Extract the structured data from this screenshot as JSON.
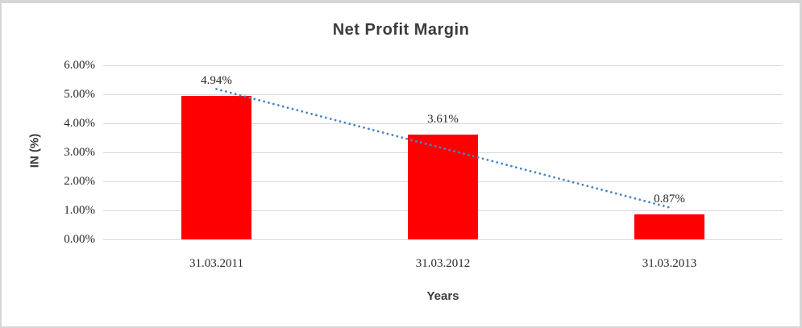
{
  "window": {
    "background_color": "#ffffff",
    "border_color": "#d6d6d6"
  },
  "chart_data": {
    "type": "bar",
    "title": "Net Profit Margin",
    "xlabel": "Years",
    "ylabel": "IN (%)",
    "categories": [
      "31.03.2011",
      "31.03.2012",
      "31.03.2013"
    ],
    "values": [
      4.94,
      3.61,
      0.87
    ],
    "data_labels": [
      "4.94%",
      "3.61%",
      "0.87%"
    ],
    "ylim": [
      0,
      6
    ],
    "ytick_step": 1,
    "ytick_labels": [
      "0.00%",
      "1.00%",
      "2.00%",
      "3.00%",
      "4.00%",
      "5.00%",
      "6.00%"
    ],
    "grid": true,
    "legend_visible": false,
    "bar_color": "#ff0000",
    "gridline_color": "#d9d9d9",
    "tick_text_color": "#262626",
    "title_color": "#3b3b3b",
    "trendline": {
      "type": "linear",
      "style": "dotted",
      "color": "#4a86c8",
      "start_value": 5.18,
      "end_value": 1.1
    }
  }
}
